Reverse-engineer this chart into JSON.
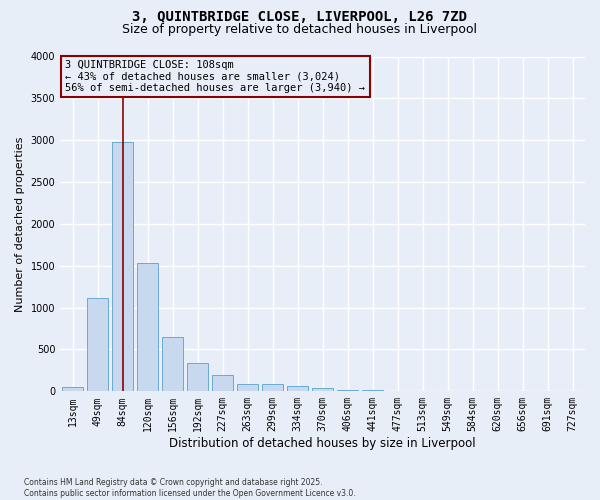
{
  "title_line1": "3, QUINTBRIDGE CLOSE, LIVERPOOL, L26 7ZD",
  "title_line2": "Size of property relative to detached houses in Liverpool",
  "xlabel": "Distribution of detached houses by size in Liverpool",
  "ylabel": "Number of detached properties",
  "categories": [
    "13sqm",
    "49sqm",
    "84sqm",
    "120sqm",
    "156sqm",
    "192sqm",
    "227sqm",
    "263sqm",
    "299sqm",
    "334sqm",
    "370sqm",
    "406sqm",
    "441sqm",
    "477sqm",
    "513sqm",
    "549sqm",
    "584sqm",
    "620sqm",
    "656sqm",
    "691sqm",
    "727sqm"
  ],
  "values": [
    55,
    1110,
    2980,
    1530,
    650,
    340,
    200,
    90,
    90,
    65,
    35,
    10,
    10,
    0,
    0,
    0,
    0,
    0,
    0,
    0,
    0
  ],
  "bar_color": "#c8d9ef",
  "bar_edge_color": "#6aaad4",
  "vline_x": 2.0,
  "vline_color": "#8b0000",
  "annotation_title": "3 QUINTBRIDGE CLOSE: 108sqm",
  "annotation_line1": "← 43% of detached houses are smaller (3,024)",
  "annotation_line2": "56% of semi-detached houses are larger (3,940) →",
  "annotation_box_facecolor": "#e8eef8",
  "annotation_box_edgecolor": "#8b0000",
  "ylim": [
    0,
    4000
  ],
  "yticks": [
    0,
    500,
    1000,
    1500,
    2000,
    2500,
    3000,
    3500,
    4000
  ],
  "bg_color": "#e8eef8",
  "grid_color": "#ffffff",
  "title_fontsize": 10,
  "subtitle_fontsize": 9,
  "tick_fontsize": 7,
  "ylabel_fontsize": 8,
  "xlabel_fontsize": 8.5,
  "footnote1": "Contains HM Land Registry data © Crown copyright and database right 2025.",
  "footnote2": "Contains public sector information licensed under the Open Government Licence v3.0."
}
